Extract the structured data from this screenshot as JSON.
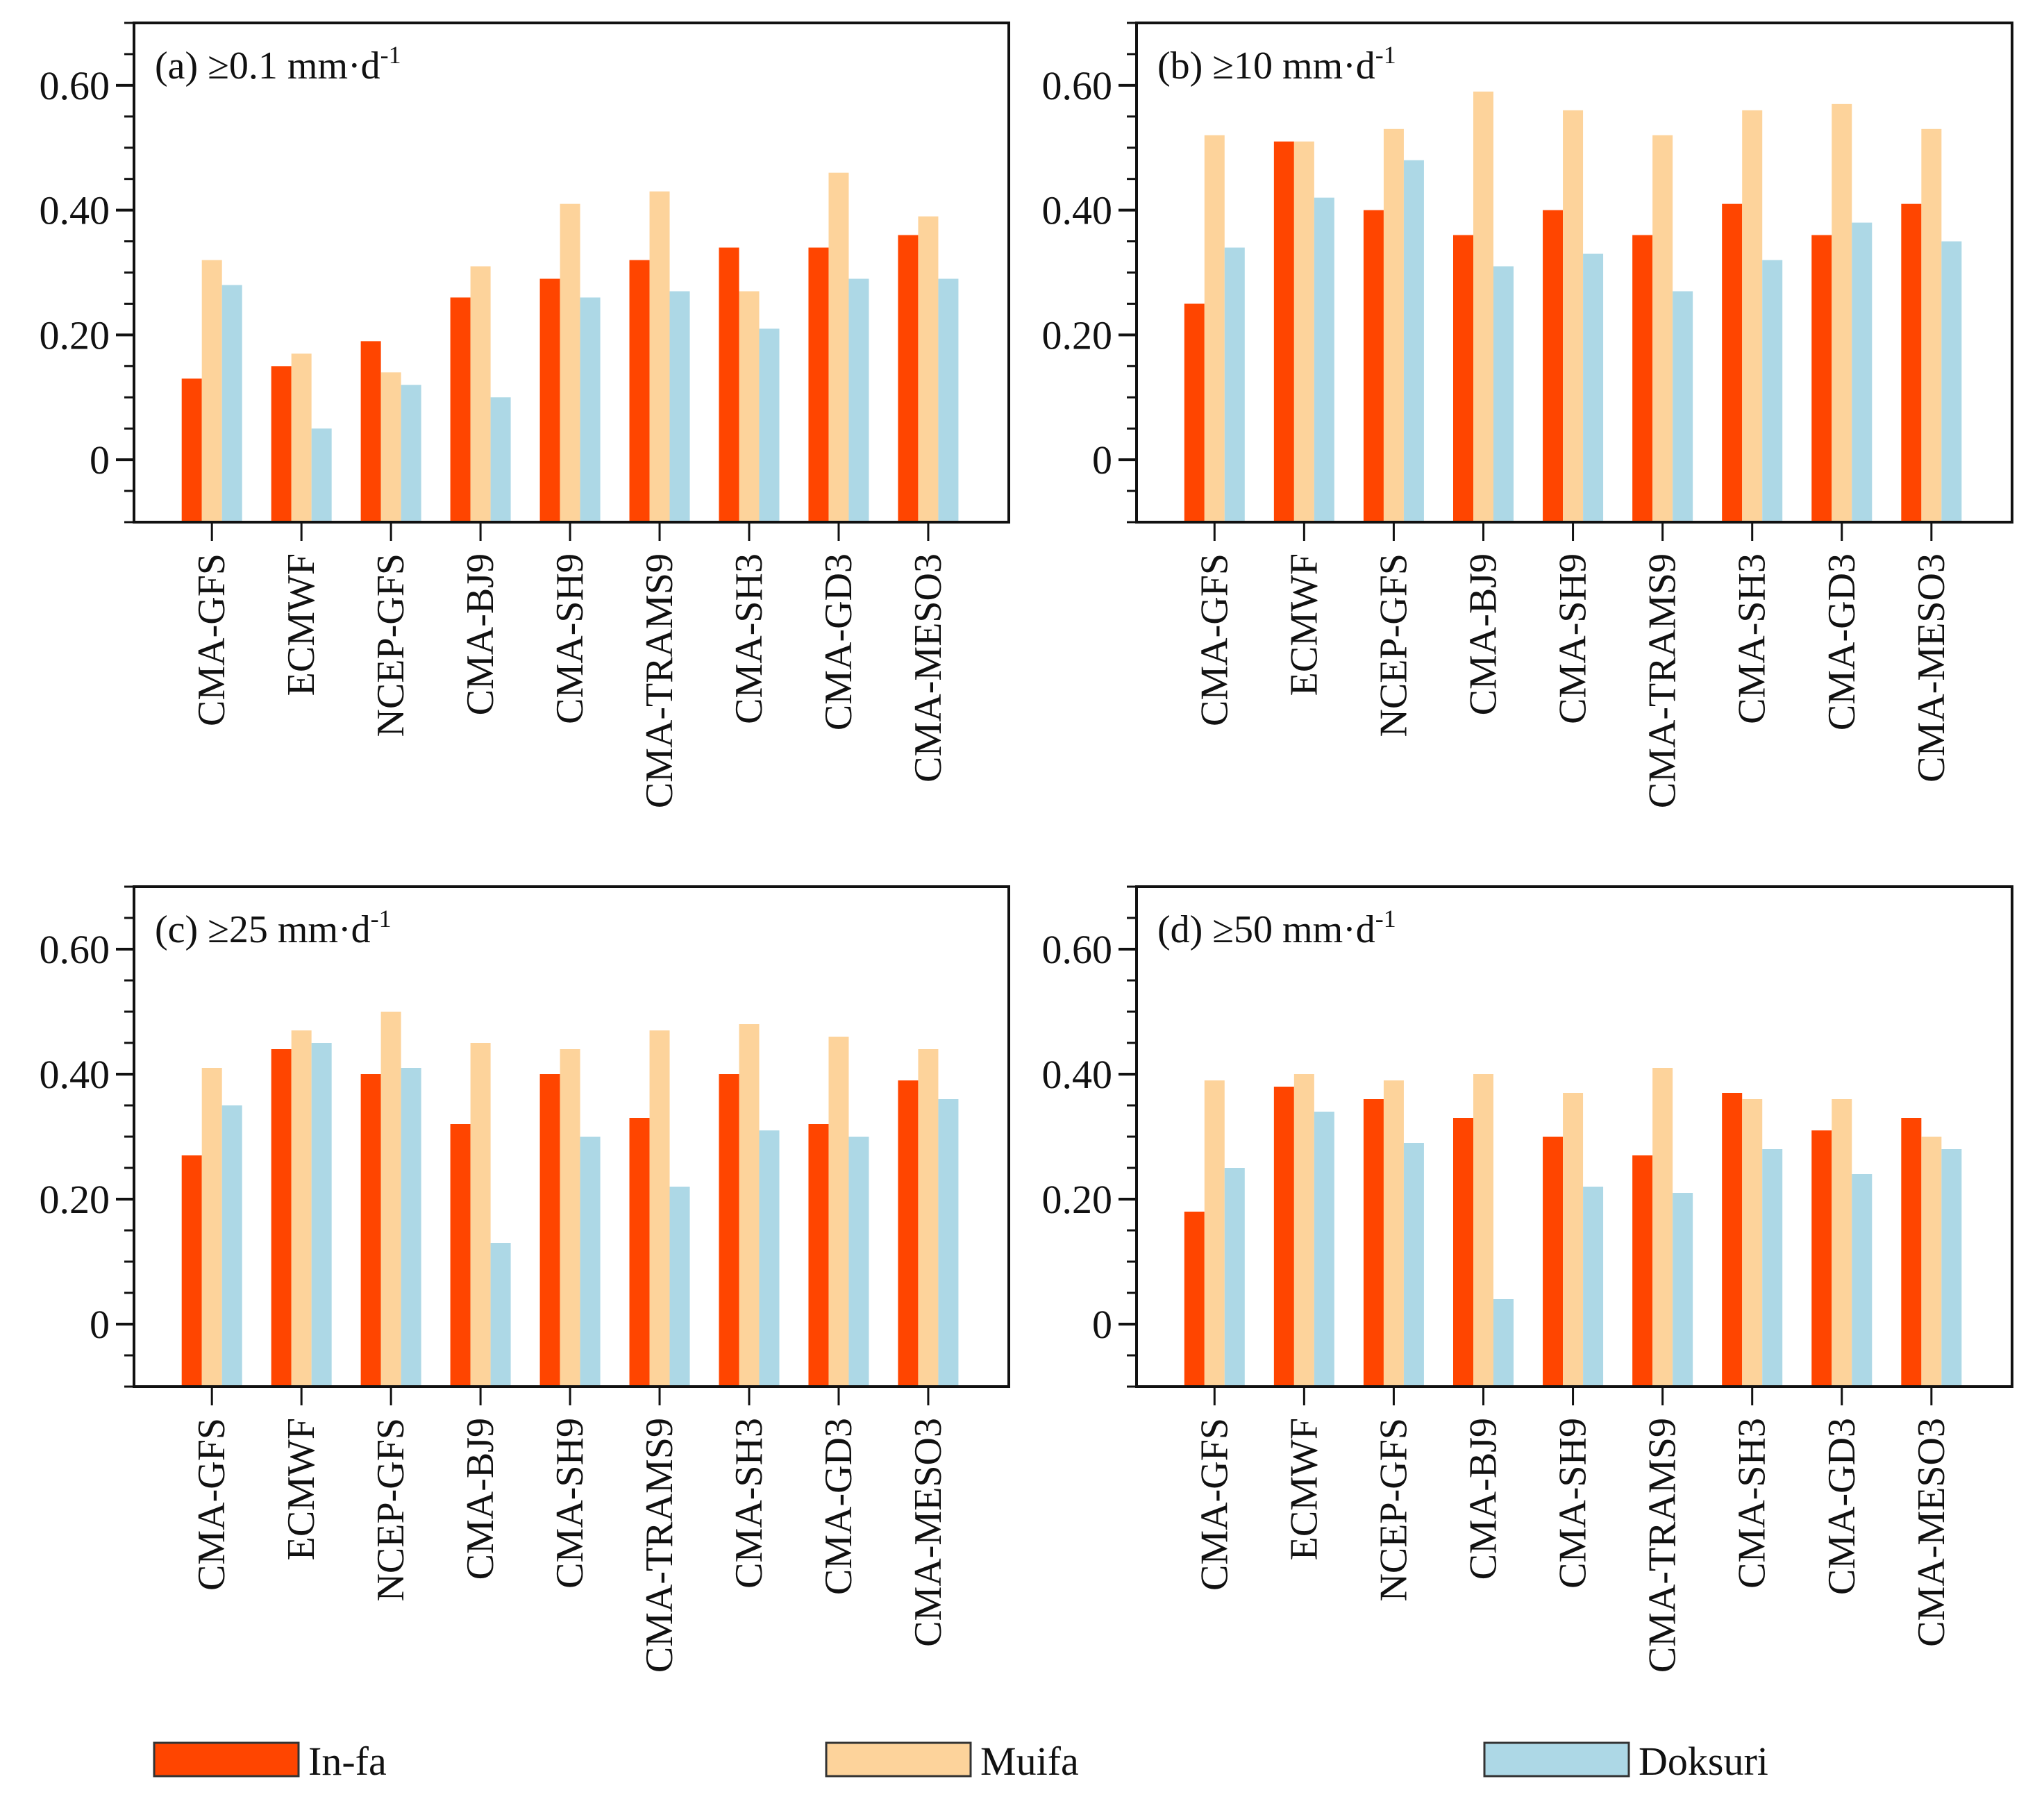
{
  "chart_data": {
    "type": "bar",
    "categories": [
      "CMA-GFS",
      "ECMWF",
      "NCEP-GFS",
      "CMA-BJ9",
      "CMA-SH9",
      "CMA-TRAMS9",
      "CMA-SH3",
      "CMA-GD3",
      "CMA-MESO3"
    ],
    "ylim": [
      -0.1,
      0.7
    ],
    "yticks": [
      0,
      0.2,
      0.4,
      0.6
    ],
    "ytick_labels": [
      "0",
      "0.20",
      "0.40",
      "0.60"
    ],
    "grid": false,
    "legend": {
      "placement": "bottom",
      "entries": [
        {
          "name": "In-fa",
          "color": "#FF4500"
        },
        {
          "name": "Muifa",
          "color": "#FDD39B"
        },
        {
          "name": "Doksuri",
          "color": "#ADD8E6"
        }
      ]
    },
    "panels": [
      {
        "label": "(a)",
        "threshold": "≥0.1",
        "unit": "mm·d",
        "unit_sup": "-1",
        "series": [
          {
            "name": "In-fa",
            "values": [
              0.13,
              0.15,
              0.19,
              0.26,
              0.29,
              0.32,
              0.34,
              0.34,
              0.36
            ]
          },
          {
            "name": "Muifa",
            "values": [
              0.32,
              0.17,
              0.14,
              0.31,
              0.41,
              0.43,
              0.27,
              0.46,
              0.39
            ]
          },
          {
            "name": "Doksuri",
            "values": [
              0.28,
              0.05,
              0.12,
              0.1,
              0.26,
              0.27,
              0.21,
              0.29,
              0.29
            ]
          }
        ]
      },
      {
        "label": "(b)",
        "threshold": "≥10",
        "unit": "mm·d",
        "unit_sup": "-1",
        "series": [
          {
            "name": "In-fa",
            "values": [
              0.25,
              0.51,
              0.4,
              0.36,
              0.4,
              0.36,
              0.41,
              0.36,
              0.41
            ]
          },
          {
            "name": "Muifa",
            "values": [
              0.52,
              0.51,
              0.53,
              0.59,
              0.56,
              0.52,
              0.56,
              0.57,
              0.53
            ]
          },
          {
            "name": "Doksuri",
            "values": [
              0.34,
              0.42,
              0.48,
              0.31,
              0.33,
              0.27,
              0.32,
              0.38,
              0.35
            ]
          }
        ]
      },
      {
        "label": "(c)",
        "threshold": "≥25",
        "unit": "mm·d",
        "unit_sup": "-1",
        "series": [
          {
            "name": "In-fa",
            "values": [
              0.27,
              0.44,
              0.4,
              0.32,
              0.4,
              0.33,
              0.4,
              0.32,
              0.39
            ]
          },
          {
            "name": "Muifa",
            "values": [
              0.41,
              0.47,
              0.5,
              0.45,
              0.44,
              0.47,
              0.48,
              0.46,
              0.44
            ]
          },
          {
            "name": "Doksuri",
            "values": [
              0.35,
              0.45,
              0.41,
              0.13,
              0.3,
              0.22,
              0.31,
              0.3,
              0.36
            ]
          }
        ]
      },
      {
        "label": "(d)",
        "threshold": "≥50",
        "unit": "mm·d",
        "unit_sup": "-1",
        "series": [
          {
            "name": "In-fa",
            "values": [
              0.18,
              0.38,
              0.36,
              0.33,
              0.3,
              0.27,
              0.37,
              0.31,
              0.33
            ]
          },
          {
            "name": "Muifa",
            "values": [
              0.39,
              0.4,
              0.39,
              0.4,
              0.37,
              0.41,
              0.36,
              0.36,
              0.3
            ]
          },
          {
            "name": "Doksuri",
            "values": [
              0.25,
              0.34,
              0.29,
              0.04,
              0.22,
              0.21,
              0.28,
              0.24,
              0.28
            ]
          }
        ]
      }
    ]
  }
}
